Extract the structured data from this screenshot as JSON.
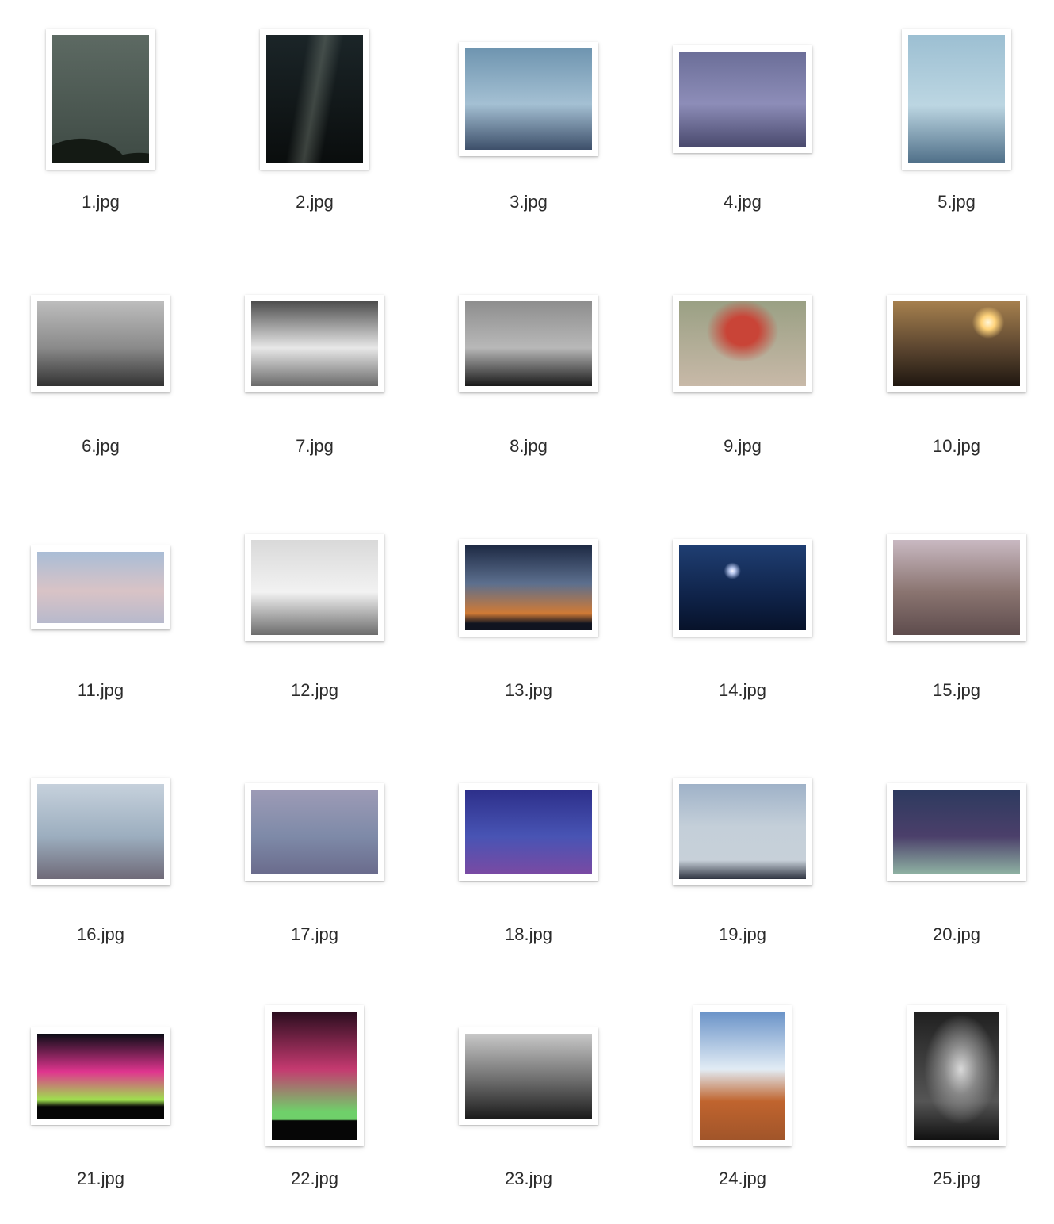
{
  "files": [
    {
      "name": "1.jpg",
      "thumb": "night-sky-hill",
      "orientation": "portrait",
      "colors": [
        "#5d6a63",
        "#3e4a44",
        "#141a14"
      ]
    },
    {
      "name": "2.jpg",
      "thumb": "milky-way",
      "orientation": "portrait",
      "colors": [
        "#1b2528",
        "#3a4744",
        "#0a0d0d"
      ]
    },
    {
      "name": "3.jpg",
      "thumb": "aerial-blue-swirls",
      "orientation": "landscape",
      "colors": [
        "#6f95b0",
        "#a4c0d3",
        "#3d4f6a"
      ]
    },
    {
      "name": "4.jpg",
      "thumb": "aerial-purple-texture",
      "orientation": "landscape",
      "colors": [
        "#6b6e98",
        "#8d8db8",
        "#4a4a6e"
      ]
    },
    {
      "name": "5.jpg",
      "thumb": "aerial-blue-erosion",
      "orientation": "portrait",
      "colors": [
        "#9cbfd2",
        "#bcd6e2",
        "#4f6f88"
      ]
    },
    {
      "name": "6.jpg",
      "thumb": "bw-butte-road",
      "orientation": "landscape",
      "colors": [
        "#bdbdbd",
        "#8a8a8a",
        "#333333"
      ]
    },
    {
      "name": "7.jpg",
      "thumb": "bw-rock-clouds",
      "orientation": "landscape",
      "colors": [
        "#4d4d4d",
        "#e8e8e8",
        "#6a6a6a"
      ]
    },
    {
      "name": "8.jpg",
      "thumb": "bw-cloud-layers",
      "orientation": "landscape",
      "colors": [
        "#8e8e8e",
        "#b8b8b8",
        "#1a1a1a"
      ]
    },
    {
      "name": "9.jpg",
      "thumb": "red-flower-rock",
      "orientation": "landscape",
      "colors": [
        "#9aa084",
        "#c94437",
        "#c8b9a8"
      ]
    },
    {
      "name": "10.jpg",
      "thumb": "sunset-desert",
      "orientation": "landscape",
      "colors": [
        "#a6804e",
        "#5c4630",
        "#1f1710"
      ]
    },
    {
      "name": "11.jpg",
      "thumb": "pastel-sky-cloud",
      "orientation": "landscape",
      "colors": [
        "#a9bdd6",
        "#d9c3c6",
        "#b7b9cc"
      ]
    },
    {
      "name": "12.jpg",
      "thumb": "bw-badlands",
      "orientation": "landscape",
      "colors": [
        "#d9d9d9",
        "#f2f2f2",
        "#6d6d6d"
      ]
    },
    {
      "name": "13.jpg",
      "thumb": "dusk-clouds-sunset",
      "orientation": "landscape",
      "colors": [
        "#1e2a44",
        "#5c6f8e",
        "#d07a35"
      ]
    },
    {
      "name": "14.jpg",
      "thumb": "moonlit-night",
      "orientation": "landscape",
      "colors": [
        "#0f2349",
        "#1f3e72",
        "#07122a"
      ]
    },
    {
      "name": "15.jpg",
      "thumb": "desert-canyon-aerial",
      "orientation": "landscape",
      "colors": [
        "#c9b9c2",
        "#8a7470",
        "#5e4c4d"
      ]
    },
    {
      "name": "16.jpg",
      "thumb": "aerial-white-ridges",
      "orientation": "landscape",
      "colors": [
        "#c6d1dc",
        "#9caebf",
        "#6f6a78"
      ]
    },
    {
      "name": "17.jpg",
      "thumb": "lavender-cloud",
      "orientation": "landscape",
      "colors": [
        "#9d9bb6",
        "#7e8aa8",
        "#6a6b8c"
      ]
    },
    {
      "name": "18.jpg",
      "thumb": "twilight-blue-sky",
      "orientation": "landscape",
      "colors": [
        "#2d2f8a",
        "#4854b4",
        "#7a4aa3"
      ]
    },
    {
      "name": "19.jpg",
      "thumb": "salt-flat-road",
      "orientation": "landscape",
      "colors": [
        "#9fb2c8",
        "#c4cfd9",
        "#2e3340"
      ]
    },
    {
      "name": "20.jpg",
      "thumb": "night-teal-clouds",
      "orientation": "landscape",
      "colors": [
        "#2d3a5f",
        "#4b3f6a",
        "#8fb3a3"
      ]
    },
    {
      "name": "21.jpg",
      "thumb": "aurora-pink-green",
      "orientation": "landscape",
      "colors": [
        "#0b0c16",
        "#e0358f",
        "#9ee04e"
      ]
    },
    {
      "name": "22.jpg",
      "thumb": "aurora-vertical",
      "orientation": "portrait",
      "colors": [
        "#2a0d1e",
        "#c53a70",
        "#6fd06a"
      ]
    },
    {
      "name": "23.jpg",
      "thumb": "bw-plant-closeup",
      "orientation": "landscape",
      "colors": [
        "#c8c8c8",
        "#6d6d6d",
        "#1c1c1c"
      ]
    },
    {
      "name": "24.jpg",
      "thumb": "red-rock-tower",
      "orientation": "portrait",
      "colors": [
        "#6a93c8",
        "#e2ecf5",
        "#c0642e"
      ]
    },
    {
      "name": "25.jpg",
      "thumb": "bw-sun-rays",
      "orientation": "portrait",
      "colors": [
        "#202020",
        "#d9d9d9",
        "#555555"
      ]
    }
  ]
}
